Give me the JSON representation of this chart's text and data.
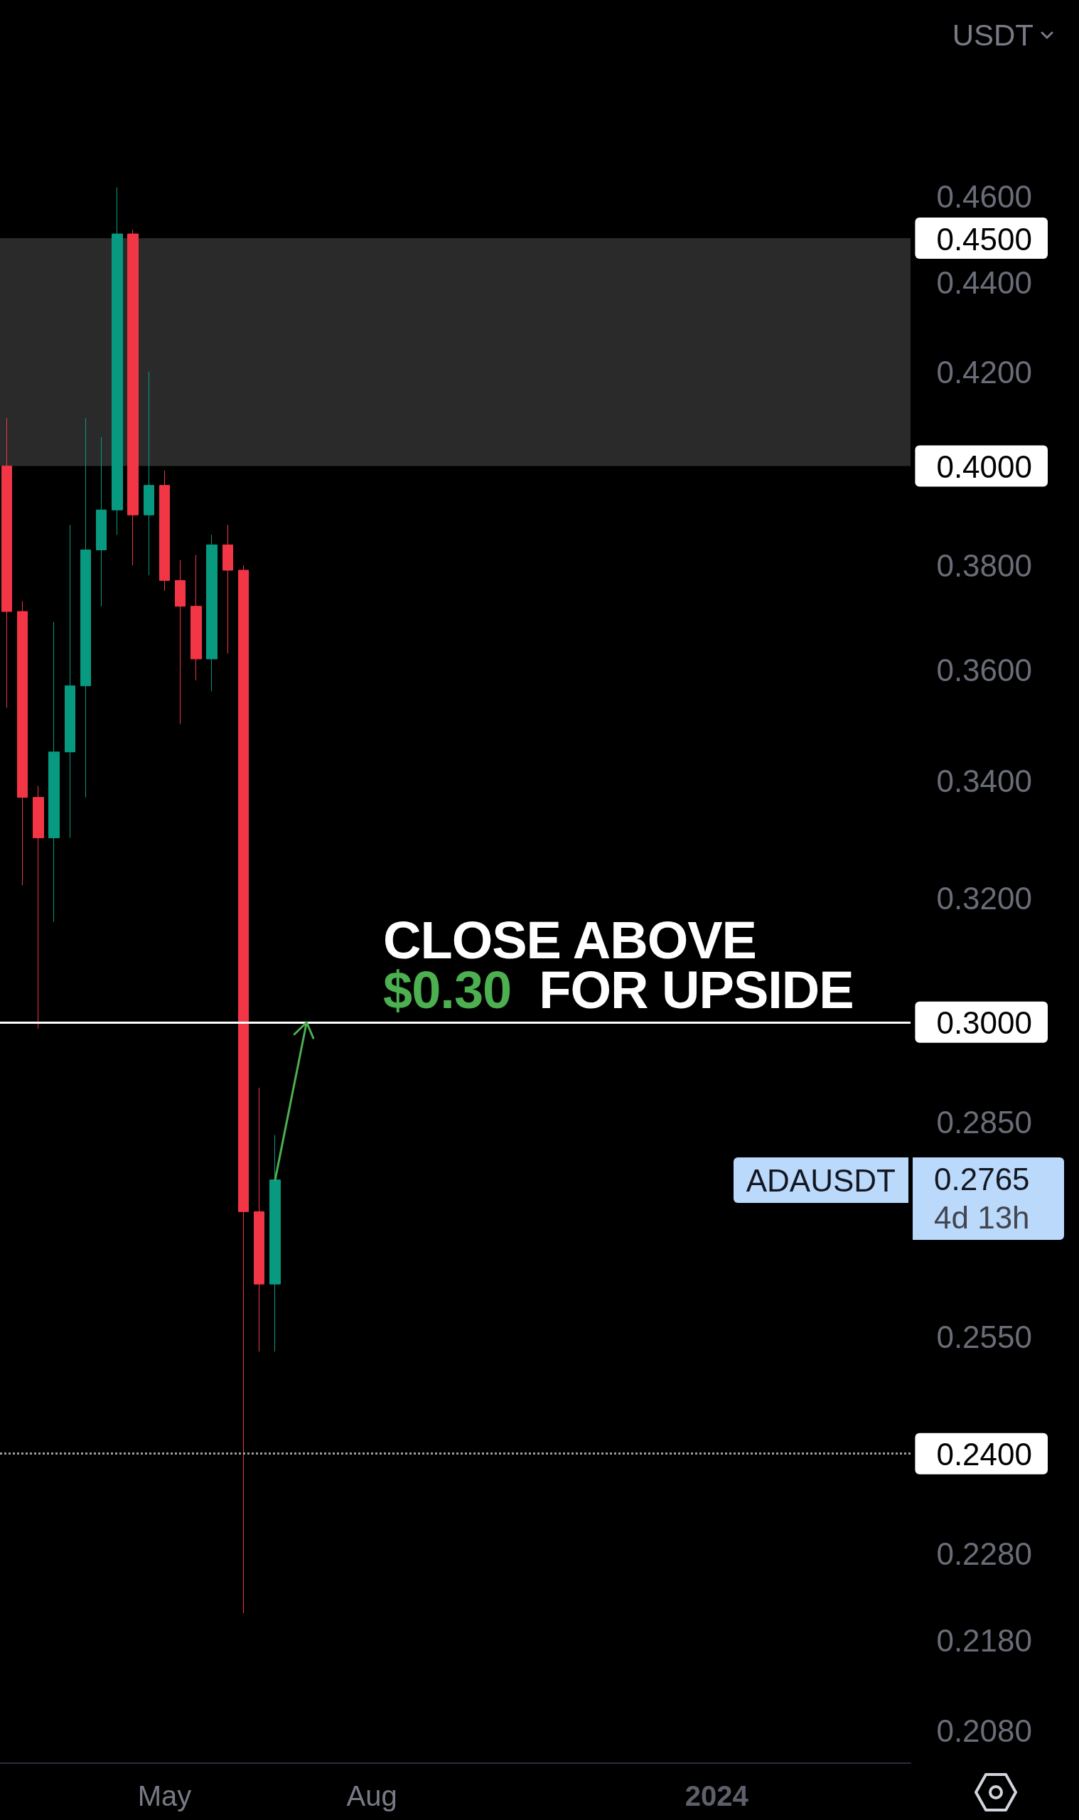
{
  "chart_data": {
    "type": "candlestick",
    "ylabel": "USDT",
    "x": [
      "2023-02-20",
      "2023-02-27",
      "2023-03-06",
      "2023-03-13",
      "2023-03-20",
      "2023-03-27",
      "2023-04-03",
      "2023-04-10",
      "2023-04-17",
      "2023-04-24",
      "2023-05-01",
      "2023-05-08",
      "2023-05-15",
      "2023-05-22",
      "2023-05-29",
      "2023-06-05",
      "2023-06-12",
      "2023-06-19"
    ],
    "ohlc": [
      [
        0.4,
        0.41,
        0.353,
        0.371
      ],
      [
        0.371,
        0.373,
        0.322,
        0.337
      ],
      [
        0.337,
        0.339,
        0.299,
        0.33
      ],
      [
        0.33,
        0.369,
        0.316,
        0.345
      ],
      [
        0.345,
        0.388,
        0.33,
        0.357
      ],
      [
        0.357,
        0.41,
        0.337,
        0.383
      ],
      [
        0.383,
        0.406,
        0.372,
        0.391
      ],
      [
        0.391,
        0.462,
        0.386,
        0.451
      ],
      [
        0.451,
        0.452,
        0.38,
        0.39
      ],
      [
        0.39,
        0.42,
        0.378,
        0.396
      ],
      [
        0.396,
        0.399,
        0.375,
        0.377
      ],
      [
        0.377,
        0.381,
        0.35,
        0.372
      ],
      [
        0.372,
        0.382,
        0.358,
        0.362
      ],
      [
        0.362,
        0.386,
        0.356,
        0.384
      ],
      [
        0.384,
        0.388,
        0.363,
        0.379
      ],
      [
        0.379,
        0.38,
        0.221,
        0.272
      ],
      [
        0.272,
        0.29,
        0.253,
        0.262
      ],
      [
        0.262,
        0.283,
        0.253,
        0.2765
      ]
    ],
    "colors": [
      "#f23645",
      "#f23645",
      "#f23645",
      "#089981",
      "#089981",
      "#089981",
      "#089981",
      "#089981",
      "#f23645",
      "#089981",
      "#f23645",
      "#f23645",
      "#f23645",
      "#089981",
      "#f23645",
      "#f23645",
      "#f23645",
      "#089981"
    ],
    "log": true,
    "xlim": [
      "2023-02-17",
      "2024-03-27"
    ],
    "xticks": [
      {
        "value": "2023-05-01",
        "label": "May"
      },
      {
        "value": "2023-08-01",
        "label": "Aug"
      },
      {
        "value": "2024-01-01",
        "label": "2024"
      }
    ],
    "ylim": [
      0.2045,
      0.509
    ],
    "yticks": [
      {
        "value": 0.46,
        "label": "0.4600"
      },
      {
        "value": 0.45,
        "label": "0.4500"
      },
      {
        "value": 0.44,
        "label": "0.4400"
      },
      {
        "value": 0.42,
        "label": "0.4200"
      },
      {
        "value": 0.4,
        "label": "0.4000"
      },
      {
        "value": 0.38,
        "label": "0.3800"
      },
      {
        "value": 0.36,
        "label": "0.3600"
      },
      {
        "value": 0.34,
        "label": "0.3400"
      },
      {
        "value": 0.32,
        "label": "0.3200"
      },
      {
        "value": 0.3,
        "label": "0.3000"
      },
      {
        "value": 0.285,
        "label": "0.2850"
      },
      {
        "value": 0.255,
        "label": "0.2550"
      },
      {
        "value": 0.24,
        "label": "0.2400"
      },
      {
        "value": 0.228,
        "label": "0.2280"
      },
      {
        "value": 0.218,
        "label": "0.2180"
      },
      {
        "value": 0.208,
        "label": "0.2080"
      }
    ],
    "bands": [
      {
        "axis": "y",
        "from": 0.4,
        "to": 0.45,
        "color": "#2a2a2a"
      }
    ],
    "ref_lines": [
      {
        "axis": "y",
        "value": 0.3,
        "color": "#ffffff",
        "line_style": "solid"
      },
      {
        "axis": "y",
        "value": 0.24,
        "color": "#9e9e9e",
        "line_style": "dotted"
      }
    ],
    "annotations": [
      {
        "text": "CLOSE ABOVE $0.30 FOR UPSIDE",
        "x": "2023-08-06",
        "y": 0.3
      },
      "ADAUSDT",
      "0.2765",
      "4d 13h"
    ],
    "grid": false
  }
}
